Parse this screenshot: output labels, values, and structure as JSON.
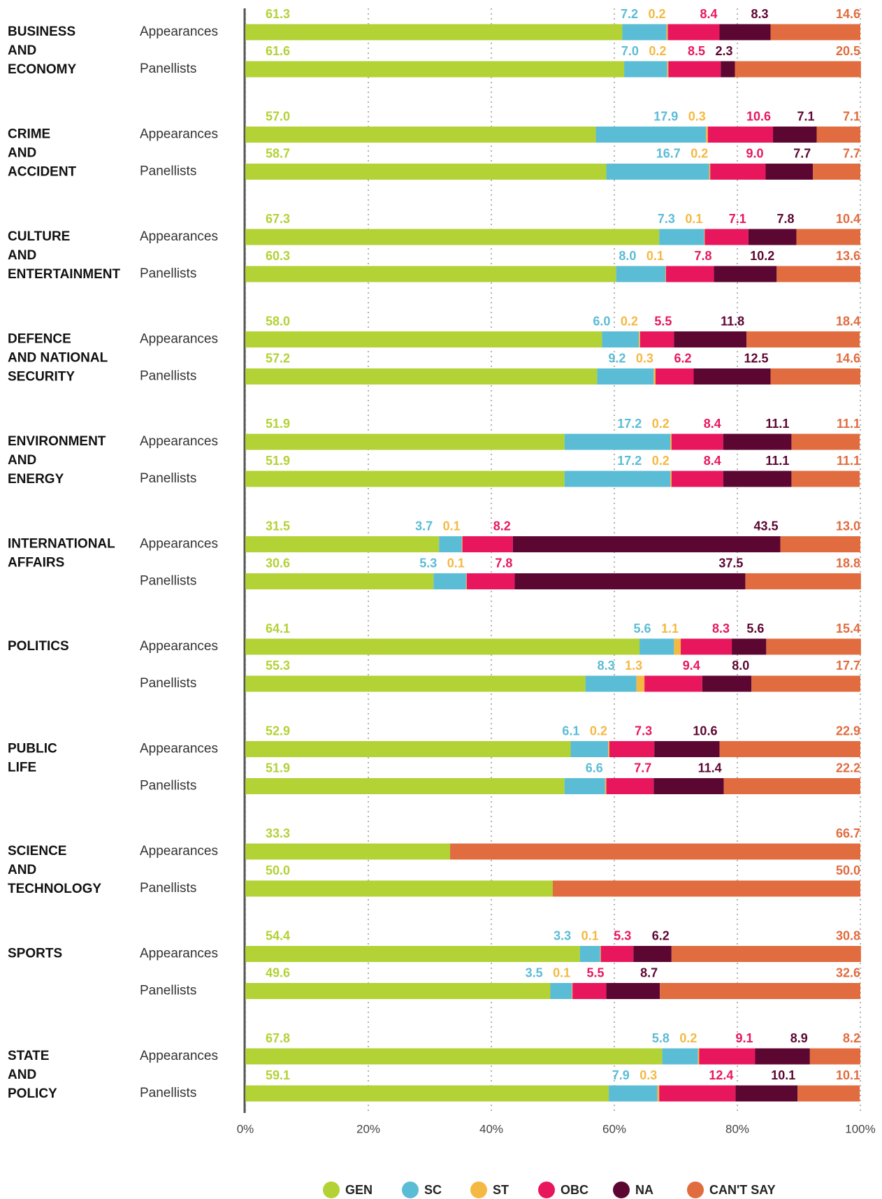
{
  "chart_data": {
    "type": "bar",
    "orientation": "horizontal",
    "stacked": true,
    "groups": [
      {
        "label": [
          "BUSINESS",
          "AND",
          "ECONOMY"
        ]
      },
      {
        "label": [
          "CRIME",
          "AND",
          "ACCIDENT"
        ]
      },
      {
        "label": [
          "CULTURE",
          "AND",
          "ENTERTAINMENT"
        ]
      },
      {
        "label": [
          "DEFENCE",
          "AND NATIONAL",
          "SECURITY"
        ]
      },
      {
        "label": [
          "ENVIRONMENT",
          "AND",
          "ENERGY"
        ]
      },
      {
        "label": [
          "INTERNATIONAL",
          "AFFAIRS"
        ]
      },
      {
        "label": [
          "POLITICS"
        ]
      },
      {
        "label": [
          "PUBLIC",
          "LIFE"
        ]
      },
      {
        "label": [
          "SCIENCE",
          "AND",
          "TECHNOLOGY"
        ]
      },
      {
        "label": [
          "SPORTS"
        ]
      },
      {
        "label": [
          "STATE",
          "AND",
          "POLICY"
        ]
      }
    ],
    "categories": [
      "Appearances",
      "Panellists",
      "Appearances",
      "Panellists",
      "Appearances",
      "Panellists",
      "Appearances",
      "Panellists",
      "Appearances",
      "Panellists",
      "Appearances",
      "Panellists",
      "Appearances",
      "Panellists",
      "Appearances",
      "Panellists",
      "Appearances",
      "Panellists",
      "Appearances",
      "Panellists",
      "Appearances",
      "Panellists"
    ],
    "series": [
      {
        "name": "GEN",
        "color": "#b2d235",
        "values": [
          61.3,
          61.6,
          57.0,
          58.7,
          67.3,
          60.3,
          58.0,
          57.2,
          51.9,
          51.9,
          31.5,
          30.6,
          64.1,
          55.3,
          52.9,
          51.9,
          33.3,
          50.0,
          54.4,
          49.6,
          67.8,
          59.1
        ],
        "value_labels": [
          "61.3",
          "61.6",
          "57.0",
          "58.7",
          "67.3",
          "60.3",
          "58.0",
          "57.2",
          "51.9",
          "51.9",
          "31.5",
          "30.6",
          "64.1",
          "55.3",
          "52.9",
          "51.9",
          "33.3",
          "50.0",
          "54.4",
          "49.6",
          "67.8",
          "59.1"
        ]
      },
      {
        "name": "SC",
        "color": "#5bbcd6",
        "values": [
          7.2,
          7.0,
          17.9,
          16.7,
          7.3,
          8.0,
          6.0,
          9.2,
          17.2,
          17.2,
          3.7,
          5.3,
          5.6,
          8.3,
          6.1,
          6.6,
          0,
          0,
          3.3,
          3.5,
          5.8,
          7.9
        ],
        "value_labels": [
          "7.2",
          "7.0",
          "17.9",
          "16.7",
          "7.3",
          "8.0",
          "6.0",
          "9.2",
          "17.2",
          "17.2",
          "3.7",
          "5.3",
          "5.6",
          "8.3",
          "6.1",
          "6.6",
          null,
          null,
          "3.3",
          "3.5",
          "5.8",
          "7.9"
        ]
      },
      {
        "name": "ST",
        "color": "#f4b942",
        "values": [
          0.2,
          0.2,
          0.3,
          0.2,
          0.1,
          0.1,
          0.2,
          0.3,
          0.2,
          0.2,
          0.1,
          0.1,
          1.1,
          1.3,
          0.2,
          0.2,
          0,
          0,
          0.1,
          0.1,
          0.2,
          0.3
        ],
        "value_labels": [
          "0.2",
          "0.2",
          "0.3",
          "0.2",
          "0.1",
          "0.1",
          "0.2",
          "0.3",
          "0.2",
          "0.2",
          "0.1",
          "0.1",
          "1.1",
          "1.3",
          "0.2",
          null,
          null,
          null,
          "0.1",
          "0.1",
          "0.2",
          "0.3"
        ]
      },
      {
        "name": "OBC",
        "color": "#e8175d",
        "values": [
          8.4,
          8.5,
          10.6,
          9.0,
          7.1,
          7.8,
          5.5,
          6.2,
          8.4,
          8.4,
          8.2,
          7.8,
          8.3,
          9.4,
          7.3,
          7.7,
          0,
          0,
          5.3,
          5.5,
          9.1,
          12.4
        ],
        "value_labels": [
          "8.4",
          "8.5",
          "10.6",
          "9.0",
          "7.1",
          "7.8",
          "5.5",
          "6.2",
          "8.4",
          "8.4",
          "8.2",
          "7.8",
          "8.3",
          "9.4",
          "7.3",
          "7.7",
          null,
          null,
          "5.3",
          "5.5",
          "9.1",
          "12.4"
        ]
      },
      {
        "name": "NA",
        "color": "#5c0632",
        "values": [
          8.3,
          2.3,
          7.1,
          7.7,
          7.8,
          10.2,
          11.8,
          12.5,
          11.1,
          11.1,
          43.5,
          37.5,
          5.6,
          8.0,
          10.6,
          11.4,
          0,
          0,
          6.2,
          8.7,
          8.9,
          10.1
        ],
        "value_labels": [
          "8.3",
          "2.3",
          "7.1",
          "7.7",
          "7.8",
          "10.2",
          "11.8",
          "12.5",
          "11.1",
          "11.1",
          "43.5",
          "37.5",
          "5.6",
          "8.0",
          "10.6",
          "11.4",
          null,
          null,
          "6.2",
          "8.7",
          "8.9",
          "10.1"
        ]
      },
      {
        "name": "CAN'T SAY",
        "color": "#e06c3f",
        "values": [
          14.6,
          20.5,
          7.1,
          7.7,
          10.4,
          13.6,
          18.4,
          14.6,
          11.1,
          11.1,
          13.0,
          18.8,
          15.4,
          17.7,
          22.9,
          22.2,
          66.7,
          50.0,
          30.8,
          32.6,
          8.2,
          10.1
        ],
        "value_labels": [
          "14.6",
          "20.5",
          "7.1",
          "7.7",
          "10.4",
          "13.6",
          "18.4",
          "14.6",
          "11.1",
          "11.1",
          "13.0",
          "18.8",
          "15.4",
          "17.7",
          "22.9",
          "22.2",
          "66.7",
          "50.0",
          "30.8",
          "32.6",
          "8.2",
          "10.1"
        ]
      }
    ],
    "xlim": [
      0,
      100
    ],
    "xticks": [
      {
        "value": 0,
        "label": "0%"
      },
      {
        "value": 20,
        "label": "20%"
      },
      {
        "value": 40,
        "label": "40%"
      },
      {
        "value": 60,
        "label": "60%"
      },
      {
        "value": 80,
        "label": "80%"
      },
      {
        "value": 100,
        "label": "100%"
      }
    ],
    "grid": true,
    "legend": "bottom"
  }
}
